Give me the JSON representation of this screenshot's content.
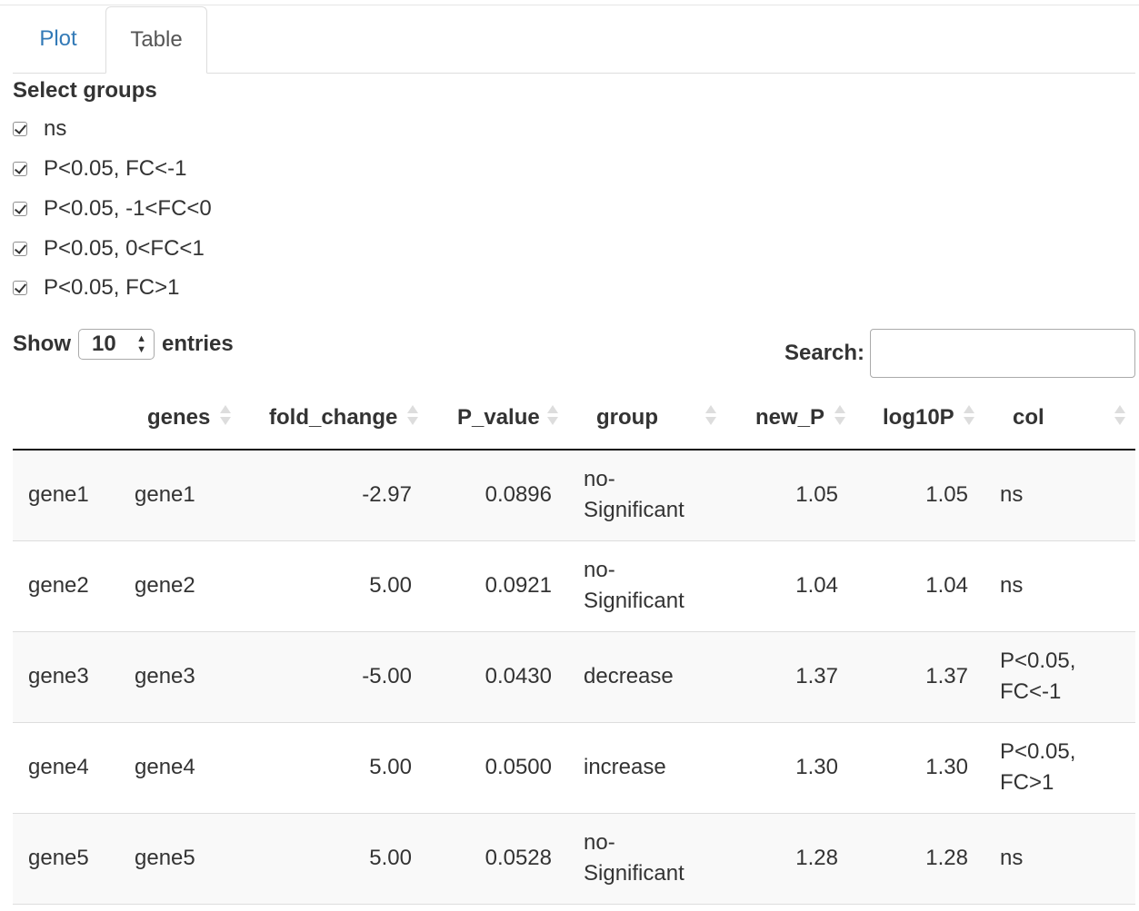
{
  "tabs": [
    {
      "label": "Plot",
      "active": false
    },
    {
      "label": "Table",
      "active": true
    }
  ],
  "checkbox_group": {
    "label": "Select groups",
    "options": [
      {
        "label": "ns",
        "checked": true
      },
      {
        "label": "P<0.05, FC<-1",
        "checked": true
      },
      {
        "label": "P<0.05, -1<FC<0",
        "checked": true
      },
      {
        "label": "P<0.05, 0<FC<1",
        "checked": true
      },
      {
        "label": "P<0.05, FC>1",
        "checked": true
      }
    ]
  },
  "length_menu": {
    "show_label": "Show",
    "value": "10",
    "entries_label": "entries"
  },
  "search": {
    "label": "Search:",
    "value": ""
  },
  "table": {
    "columns": [
      "",
      "genes",
      "fold_change",
      "P_value",
      "group",
      "new_P",
      "log10P",
      "col"
    ],
    "rows": [
      {
        "rowname": "gene1",
        "genes": "gene1",
        "fold_change": "-2.97",
        "P_value": "0.0896",
        "group": [
          "no-",
          "Significant"
        ],
        "new_P": "1.05",
        "log10P": "1.05",
        "col": [
          "ns"
        ]
      },
      {
        "rowname": "gene2",
        "genes": "gene2",
        "fold_change": "5.00",
        "P_value": "0.0921",
        "group": [
          "no-",
          "Significant"
        ],
        "new_P": "1.04",
        "log10P": "1.04",
        "col": [
          "ns"
        ]
      },
      {
        "rowname": "gene3",
        "genes": "gene3",
        "fold_change": "-5.00",
        "P_value": "0.0430",
        "group": [
          "decrease"
        ],
        "new_P": "1.37",
        "log10P": "1.37",
        "col": [
          "P<0.05,",
          "FC<-1"
        ]
      },
      {
        "rowname": "gene4",
        "genes": "gene4",
        "fold_change": "5.00",
        "P_value": "0.0500",
        "group": [
          "increase"
        ],
        "new_P": "1.30",
        "log10P": "1.30",
        "col": [
          "P<0.05,",
          "FC>1"
        ]
      },
      {
        "rowname": "gene5",
        "genes": "gene5",
        "fold_change": "5.00",
        "P_value": "0.0528",
        "group": [
          "no-",
          "Significant"
        ],
        "new_P": "1.28",
        "log10P": "1.28",
        "col": [
          "ns"
        ]
      }
    ]
  }
}
